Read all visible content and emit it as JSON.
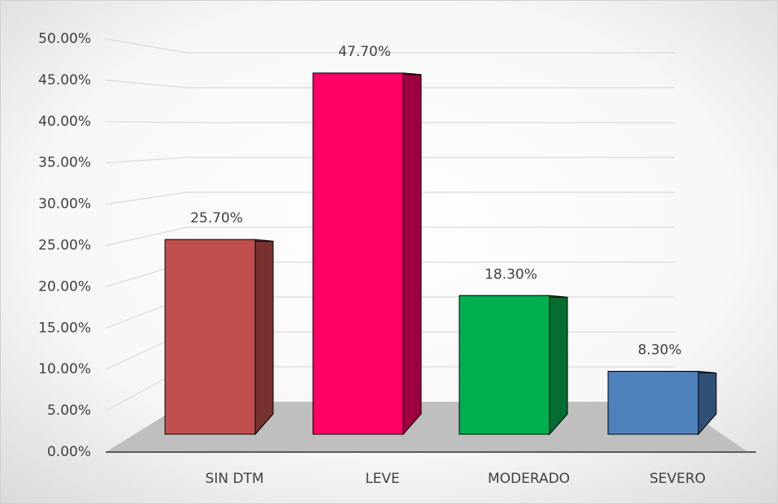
{
  "chart_data": {
    "type": "bar3d",
    "categories": [
      "SIN DTM",
      "LEVE",
      "MODERADO",
      "SEVERO"
    ],
    "values": [
      25.7,
      47.7,
      18.3,
      8.3
    ],
    "value_labels": [
      "25.70%",
      "47.70%",
      "18.30%",
      "8.30%"
    ],
    "colors": [
      "#c0504d",
      "#ff0066",
      "#00b050",
      "#4f81bd"
    ],
    "ylim": [
      0,
      50
    ],
    "yticks": [
      {
        "value": 0,
        "label": "0.00%"
      },
      {
        "value": 5,
        "label": "5.00%"
      },
      {
        "value": 10,
        "label": "10.00%"
      },
      {
        "value": 15,
        "label": "15.00%"
      },
      {
        "value": 20,
        "label": "20.00%"
      },
      {
        "value": 25,
        "label": "25.00%"
      },
      {
        "value": 30,
        "label": "30.00%"
      },
      {
        "value": 35,
        "label": "35.00%"
      },
      {
        "value": 40,
        "label": "40.00%"
      },
      {
        "value": 45,
        "label": "45.00%"
      },
      {
        "value": 50,
        "label": "50.00%"
      }
    ],
    "grid": true
  }
}
